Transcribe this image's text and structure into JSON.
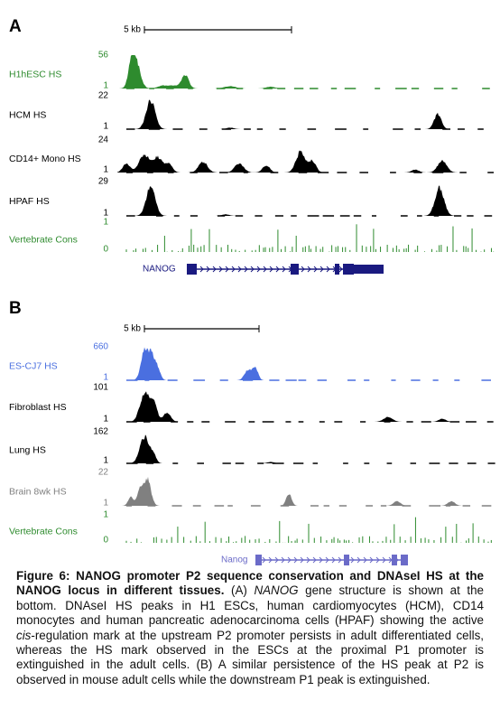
{
  "panels": [
    {
      "label": "A",
      "scale": "5 kb",
      "gene": "NANOG",
      "tracks": [
        {
          "name": "H1hESC HS",
          "max": 56,
          "min": 1,
          "color": "#2e8b2e"
        },
        {
          "name": "HCM HS",
          "max": 22,
          "min": 1,
          "color": "#000000"
        },
        {
          "name": "CD14+ Mono HS",
          "max": 24,
          "min": 1,
          "color": "#000000"
        },
        {
          "name": "HPAF HS",
          "max": 29,
          "min": 1,
          "color": "#000000"
        },
        {
          "name": "Vertebrate Cons",
          "max": 1,
          "min": 0,
          "color": "#2e8b2e"
        }
      ]
    },
    {
      "label": "B",
      "scale": "5 kb",
      "gene": "Nanog",
      "tracks": [
        {
          "name": "ES-CJ7 HS",
          "max": 660,
          "min": 1,
          "color": "#4a6fe0"
        },
        {
          "name": "Fibroblast HS",
          "max": 101,
          "min": 1,
          "color": "#000000"
        },
        {
          "name": "Lung HS",
          "max": 162,
          "min": 1,
          "color": "#000000"
        },
        {
          "name": "Brain 8wk HS",
          "max": 22,
          "min": 1,
          "color": "#808080"
        },
        {
          "name": "Vertebrate Cons",
          "max": 1,
          "min": 0,
          "color": "#2e8b2e"
        }
      ]
    }
  ],
  "caption": {
    "title": "Figure 6: NANOG promoter P2 sequence conservation and DNAseI HS at the NANOG locus in different tissues.",
    "segments": [
      {
        "text": " (A) "
      },
      {
        "text": "NANOG",
        "italic": true
      },
      {
        "text": " gene structure is shown at the bottom. DNAseI HS peaks in H1 ESCs, human cardiomyocytes (HCM), CD14 monocytes and human pancreatic adenocarcinoma cells (HPAF) showing the active "
      },
      {
        "text": "cis",
        "italic": true
      },
      {
        "text": "-regulation mark at the upstream P2 promoter persists in adult differentiated cells, whereas the HS mark observed in the ESCs at the proximal P1 promoter is extinguished in the adult cells. (B) A similar persistence of the HS peak at P2 is observed in mouse adult cells while the downstream P1 peak is extinguished."
      }
    ]
  }
}
